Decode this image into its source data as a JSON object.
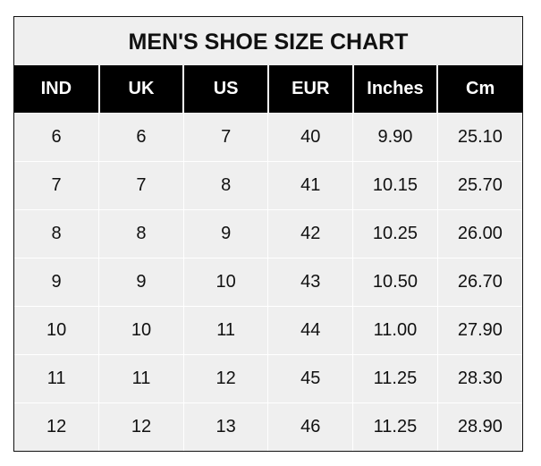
{
  "title": "MEN'S SHOE SIZE CHART",
  "headers": [
    "IND",
    "UK",
    "US",
    "EUR",
    "Inches",
    "Cm"
  ],
  "rows": [
    [
      "6",
      "6",
      "7",
      "40",
      "9.90",
      "25.10"
    ],
    [
      "7",
      "7",
      "8",
      "41",
      "10.15",
      "25.70"
    ],
    [
      "8",
      "8",
      "9",
      "42",
      "10.25",
      "26.00"
    ],
    [
      "9",
      "9",
      "10",
      "43",
      "10.50",
      "26.70"
    ],
    [
      "10",
      "10",
      "11",
      "44",
      "11.00",
      "27.90"
    ],
    [
      "11",
      "11",
      "12",
      "45",
      "11.25",
      "28.30"
    ],
    [
      "12",
      "12",
      "13",
      "46",
      "11.25",
      "28.90"
    ]
  ]
}
